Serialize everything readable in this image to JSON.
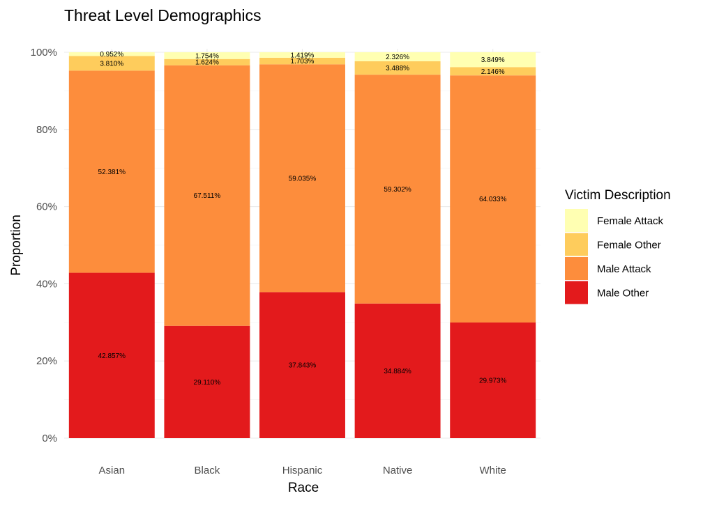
{
  "chart_data": {
    "type": "bar",
    "stacked": true,
    "title": "Threat Level Demographics",
    "xlabel": "Race",
    "ylabel": "Proportion",
    "ylim": [
      0,
      1
    ],
    "y_ticks": [
      "0%",
      "20%",
      "40%",
      "60%",
      "80%",
      "100%"
    ],
    "y_tick_values": [
      0,
      0.2,
      0.4,
      0.6,
      0.8,
      1.0
    ],
    "categories": [
      "Asian",
      "Black",
      "Hispanic",
      "Native",
      "White"
    ],
    "grid": true,
    "legend": {
      "title": "Victim Description",
      "position": "right"
    },
    "series": [
      {
        "name": "Male Other",
        "color": "#e31a1c",
        "values": [
          0.42857,
          0.2911,
          0.37843,
          0.34884,
          0.29973
        ],
        "labels": [
          "42.857%",
          "29.110%",
          "37.843%",
          "34.884%",
          "29.973%"
        ]
      },
      {
        "name": "Male Attack",
        "color": "#fd8d3c",
        "values": [
          0.52381,
          0.67511,
          0.59035,
          0.59302,
          0.64033
        ],
        "labels": [
          "52.381%",
          "67.511%",
          "59.035%",
          "59.302%",
          "64.033%"
        ]
      },
      {
        "name": "Female Other",
        "color": "#fecc5c",
        "values": [
          0.0381,
          0.01624,
          0.01703,
          0.03488,
          0.02146
        ],
        "labels": [
          "3.810%",
          "1.624%",
          "1.703%",
          "3.488%",
          "2.146%"
        ]
      },
      {
        "name": "Female Attack",
        "color": "#ffffb2",
        "values": [
          0.00952,
          0.01754,
          0.01419,
          0.02326,
          0.03849
        ],
        "labels": [
          "0.952%",
          "1.754%",
          "1.419%",
          "2.326%",
          "3.849%"
        ]
      }
    ],
    "legend_order": [
      "Female Attack",
      "Female Other",
      "Male Attack",
      "Male Other"
    ]
  }
}
